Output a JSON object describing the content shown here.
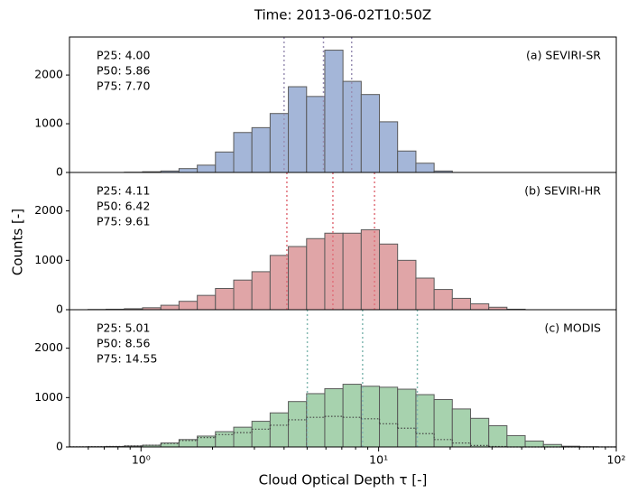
{
  "title": "Time: 2013-06-02T10:50Z",
  "xlabel": "Cloud Optical Depth τ [-]",
  "ylabel": "Counts [-]",
  "chart_data": [
    {
      "type": "histogram",
      "label": "(a) SEVIRI-SR",
      "xscale": "log",
      "bins": [
        0.501,
        0.598,
        0.713,
        0.851,
        1.015,
        1.212,
        1.445,
        1.725,
        2.057,
        2.455,
        2.929,
        3.494,
        4.169,
        4.975,
        5.934,
        7.079,
        8.447,
        10.08,
        12.02,
        14.35,
        17.12,
        20.42,
        24.36,
        29.07,
        34.67,
        41.37,
        49.36,
        58.88,
        70.25,
        83.81,
        100
      ],
      "values": [
        0,
        0,
        0,
        5,
        15,
        30,
        80,
        150,
        420,
        820,
        920,
        1210,
        1760,
        1560,
        2510,
        1870,
        1600,
        1040,
        440,
        190,
        30,
        0,
        0,
        0,
        0,
        0,
        0,
        0,
        0,
        0
      ],
      "color": "#a4b6d8",
      "edgecolor": "#5a5a5a",
      "percentiles": [
        4.0,
        5.86,
        7.7
      ],
      "percentile_labels": [
        "P25: 4.00",
        "P50: 5.86",
        "P75: 7.70"
      ],
      "percentile_color": "#9a90b4",
      "xlim": [
        0.5,
        100
      ],
      "ylim": [
        0,
        2780
      ],
      "yticks": [
        0,
        1000,
        2000
      ]
    },
    {
      "type": "histogram",
      "label": "(b) SEVIRI-HR",
      "xscale": "log",
      "bins": [
        0.501,
        0.598,
        0.713,
        0.851,
        1.015,
        1.212,
        1.445,
        1.725,
        2.057,
        2.455,
        2.929,
        3.494,
        4.169,
        4.975,
        5.934,
        7.079,
        8.447,
        10.08,
        12.02,
        14.35,
        17.12,
        20.42,
        24.36,
        29.07,
        34.67,
        41.37,
        49.36,
        58.88,
        70.25,
        83.81,
        100
      ],
      "values": [
        0,
        5,
        10,
        20,
        40,
        90,
        170,
        290,
        430,
        600,
        770,
        1100,
        1280,
        1440,
        1550,
        1550,
        1620,
        1330,
        1000,
        640,
        410,
        230,
        120,
        50,
        10,
        0,
        0,
        0,
        0,
        0
      ],
      "color": "#e0a5a7",
      "edgecolor": "#5a5a5a",
      "percentiles": [
        4.11,
        6.42,
        9.61
      ],
      "percentile_labels": [
        "P25: 4.11",
        "P50: 6.42",
        "P75: 9.61"
      ],
      "percentile_color": "#e0707a",
      "xlim": [
        0.5,
        100
      ],
      "ylim": [
        0,
        2780
      ],
      "yticks": [
        0,
        1000,
        2000
      ]
    },
    {
      "type": "histogram",
      "label": "(c) MODIS",
      "xscale": "log",
      "bins": [
        0.501,
        0.598,
        0.713,
        0.851,
        1.015,
        1.212,
        1.445,
        1.725,
        2.057,
        2.455,
        2.929,
        3.494,
        4.169,
        4.975,
        5.934,
        7.079,
        8.447,
        10.08,
        12.02,
        14.35,
        17.12,
        20.42,
        24.36,
        29.07,
        34.67,
        41.37,
        49.36,
        58.88,
        70.25,
        83.81,
        100
      ],
      "values": [
        3,
        5,
        10,
        20,
        35,
        80,
        150,
        220,
        310,
        400,
        520,
        690,
        920,
        1080,
        1180,
        1270,
        1230,
        1210,
        1170,
        1060,
        960,
        770,
        580,
        430,
        230,
        120,
        50,
        15,
        5,
        2
      ],
      "overlay_values": [
        3,
        5,
        10,
        20,
        35,
        70,
        130,
        190,
        250,
        290,
        360,
        440,
        550,
        600,
        620,
        600,
        570,
        470,
        380,
        270,
        150,
        80,
        30,
        10,
        0,
        0,
        0,
        0,
        0,
        0
      ],
      "color": "#a7d2ae",
      "edgecolor": "#5a5a5a",
      "overlay_color": "#444444",
      "percentiles": [
        5.01,
        8.56,
        14.55
      ],
      "percentile_labels": [
        "P25: 5.01",
        "P50: 8.56",
        "P75: 14.55"
      ],
      "percentile_color": "#84b9b2",
      "xlim": [
        0.5,
        100
      ],
      "ylim": [
        0,
        2780
      ],
      "yticks": [
        0,
        1000,
        2000
      ],
      "xticks": [
        {
          "value": 1,
          "label": "10⁰"
        },
        {
          "value": 10,
          "label": "10¹"
        },
        {
          "value": 100,
          "label": "10²"
        }
      ],
      "xminorticks": [
        0.6,
        0.7,
        0.8,
        0.9,
        2,
        3,
        4,
        5,
        6,
        7,
        8,
        9,
        20,
        30,
        40,
        50,
        60,
        70,
        80,
        90
      ]
    }
  ]
}
